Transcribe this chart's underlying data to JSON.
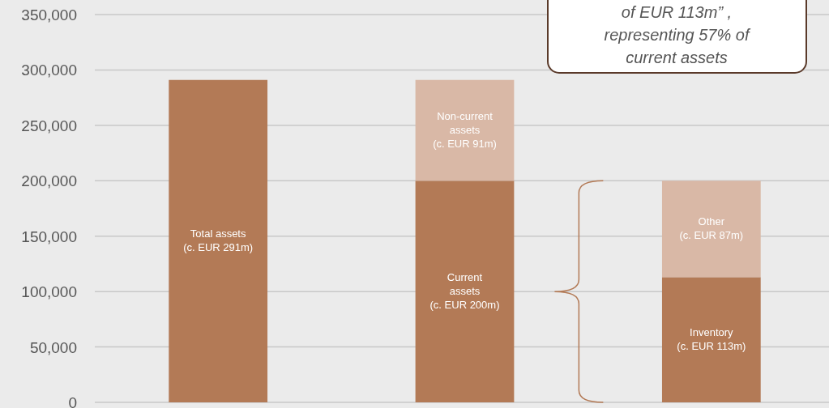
{
  "chart_data": {
    "type": "bar",
    "stacked": true,
    "categories": [
      null,
      null,
      null
    ],
    "series": [
      {
        "color": "#b37a56",
        "values": [
          291000,
          200000,
          113000
        ],
        "value_labels": [
          "Total assets\n(c. EUR 291m)",
          "Current\nassets\n(c. EUR 200m)",
          "Inventory\n(c. EUR 113m)"
        ]
      },
      {
        "color": "#d9b8a6",
        "values": [
          null,
          91000,
          87000
        ],
        "value_labels": [
          null,
          "Non-current\nassets\n(c. EUR 91m)",
          "Other\n(c. EUR 87m)"
        ]
      }
    ],
    "ylim": [
      0,
      350000
    ],
    "yticks": [
      {
        "value": 0,
        "label": "0"
      },
      {
        "value": 50000,
        "label": "50,000"
      },
      {
        "value": 100000,
        "label": "100,000"
      },
      {
        "value": 150000,
        "label": "150,000"
      },
      {
        "value": 200000,
        "label": "200,000"
      },
      {
        "value": 250000,
        "label": "250,000"
      },
      {
        "value": 300000,
        "label": "300,000"
      },
      {
        "value": 350000,
        "label": "350,000"
      }
    ],
    "grid": "y",
    "annotations": [
      "of EUR 113m” ,\nrepresenting 57% of\ncurrent assets"
    ]
  }
}
